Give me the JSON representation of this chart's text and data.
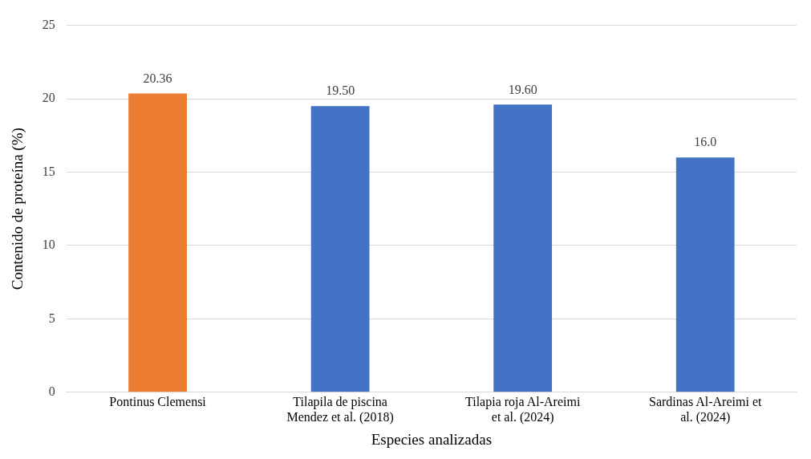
{
  "chart_data": {
    "type": "bar",
    "xlabel": "Especies analizadas",
    "ylabel": "Contenido de proteína (%)",
    "categories": [
      "Pontinus Clemensi",
      "Tilapila de piscina Mendez et al. (2018)",
      "Tilapia roja Al-Areimi et al. (2024)",
      "Sardinas Al-Areimi et al. (2024)"
    ],
    "values": [
      20.36,
      19.5,
      19.6,
      16.0
    ],
    "colors": [
      "#ed7d31",
      "#4472c4",
      "#4472c4",
      "#4472c4"
    ],
    "value_labels": [
      "20.36",
      "19.50",
      "19.60",
      "16.0"
    ],
    "ylim": [
      0,
      25
    ],
    "yticks": [
      0,
      5,
      10,
      15,
      20,
      25
    ],
    "grid": "y",
    "legend": false
  }
}
